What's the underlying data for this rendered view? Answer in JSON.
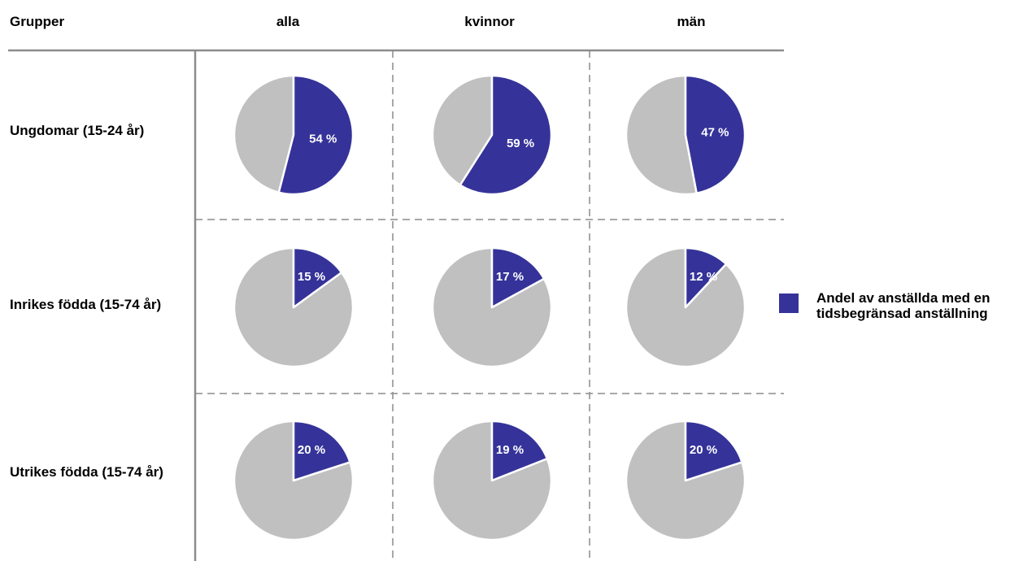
{
  "chart_data": {
    "type": "pie",
    "corner_label": "Grupper",
    "columns": [
      "alla",
      "kvinnor",
      "män"
    ],
    "rows": [
      "Ungdomar (15-24 år)",
      "Inrikes födda (15-74 år)",
      "Utrikes födda (15-74 år)"
    ],
    "values": [
      [
        54,
        59,
        47
      ],
      [
        15,
        17,
        12
      ],
      [
        20,
        19,
        20
      ]
    ],
    "value_labels": [
      [
        "54 %",
        "59 %",
        "47 %"
      ],
      [
        "15 %",
        "17 %",
        "12 %"
      ],
      [
        "20 %",
        "19 %",
        "20 %"
      ]
    ],
    "legend": {
      "label_lines": [
        "Andel av anställda med en",
        "tidsbegränsad anställning"
      ],
      "placement": "right"
    },
    "colors": {
      "share": "#353399",
      "rest": "#c0c0c0",
      "gridline": "#8c8c8c"
    }
  }
}
